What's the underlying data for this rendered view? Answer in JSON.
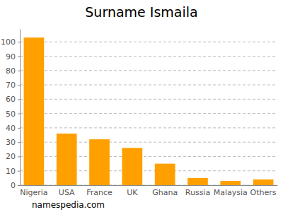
{
  "chart_data": {
    "type": "bar",
    "title": "Surname Ismaila",
    "source": "namespedia.com",
    "categories": [
      "Nigeria",
      "USA",
      "France",
      "UK",
      "Ghana",
      "Russia",
      "Malaysia",
      "Others"
    ],
    "values": [
      103,
      36,
      32,
      26,
      15,
      5,
      3,
      4
    ],
    "color": "#ffa000",
    "ylim": [
      0,
      109
    ],
    "yticks": [
      0,
      10,
      20,
      30,
      40,
      50,
      60,
      70,
      80,
      90,
      100
    ],
    "grid": true
  }
}
